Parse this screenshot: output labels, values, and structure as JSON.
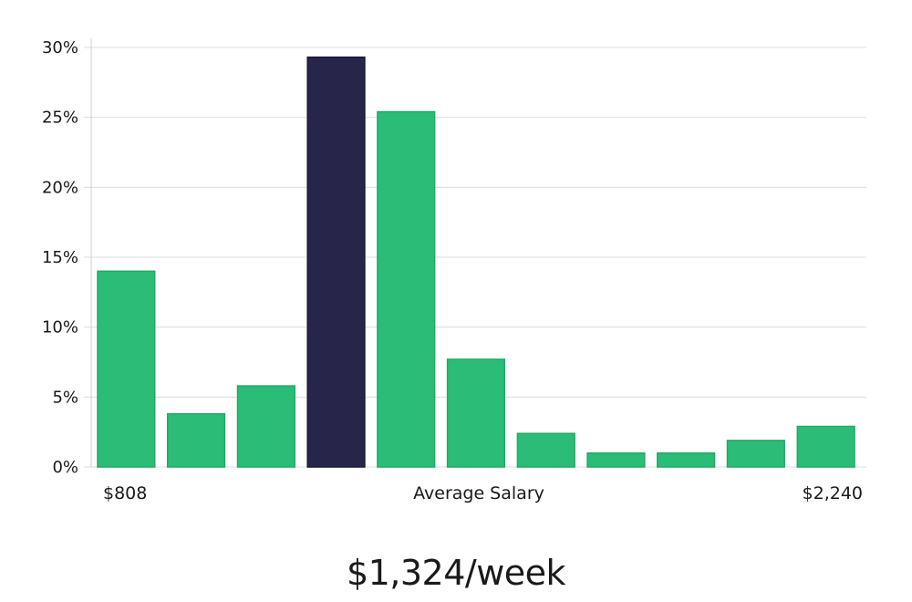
{
  "chart_data": {
    "type": "bar",
    "yticks": [
      "0%",
      "5%",
      "10%",
      "15%",
      "20%",
      "25%",
      "30%"
    ],
    "ylim": [
      0,
      30
    ],
    "grid": true,
    "x_labels": {
      "left": "$808",
      "center": "Average Salary",
      "right": "$2,240"
    },
    "values": [
      14,
      3.8,
      5.8,
      29.3,
      25.4,
      7.7,
      2.4,
      1.0,
      1.0,
      1.9,
      2.9
    ],
    "highlight_index": 3,
    "colors": {
      "bar": "#2bbd77",
      "highlight": "#28254a",
      "bar_stroke": "#22a866",
      "highlight_stroke": "#1b1838"
    }
  },
  "salary": "$1,324/week"
}
